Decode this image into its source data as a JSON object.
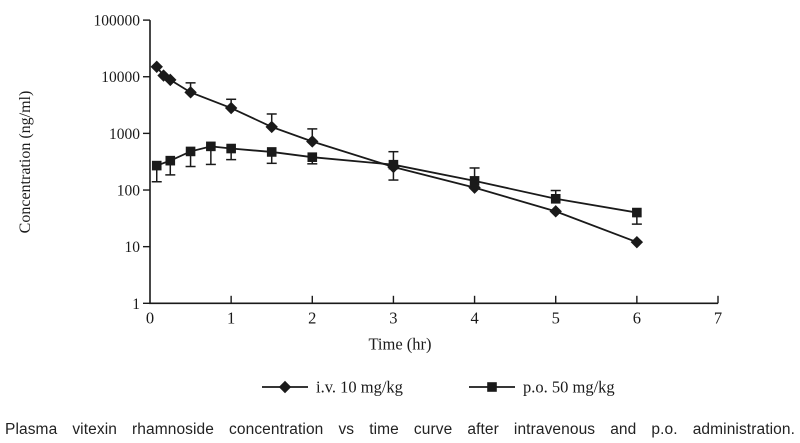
{
  "caption": "Plasma vitexin rhamnoside concentration vs time curve after intravenous and p.o. administration.",
  "colors": {
    "line": "#1a1a1a",
    "background": "#ffffff",
    "text": "#222222"
  },
  "chart_data": {
    "type": "line",
    "title": "",
    "x_axis": {
      "label": "Time (hr)",
      "min": 0,
      "max": 7,
      "ticks": [
        0,
        1,
        2,
        3,
        4,
        5,
        6,
        7
      ],
      "tick_labels": [
        "0",
        "1",
        "2",
        "3",
        "4",
        "5",
        "6",
        "7"
      ]
    },
    "y_axis": {
      "label": "Concentration (ng/ml)",
      "scale": "log",
      "min": 1,
      "max": 100000,
      "ticks": [
        1,
        10,
        100,
        1000,
        10000,
        100000
      ],
      "tick_labels": [
        "1",
        "10",
        "100",
        "1000",
        "10000",
        "100000"
      ]
    },
    "legend_position": "bottom",
    "grid": false,
    "series": [
      {
        "name": "i.v. 10 mg/kg",
        "marker": "diamond",
        "points": [
          {
            "t": 0.083,
            "c": 15000
          },
          {
            "t": 0.167,
            "c": 10500
          },
          {
            "t": 0.25,
            "c": 8800
          },
          {
            "t": 0.5,
            "c": 5300,
            "err_up": 7800
          },
          {
            "t": 1,
            "c": 2800,
            "err_up": 4000
          },
          {
            "t": 1.5,
            "c": 1300,
            "err_up": 2200
          },
          {
            "t": 2,
            "c": 720,
            "err_up": 1200
          },
          {
            "t": 3,
            "c": 255
          },
          {
            "t": 4,
            "c": 110
          },
          {
            "t": 5,
            "c": 42
          },
          {
            "t": 6,
            "c": 12
          }
        ]
      },
      {
        "name": "p.o. 50 mg/kg",
        "marker": "square",
        "points": [
          {
            "t": 0.083,
            "c": 270,
            "err_down": 140
          },
          {
            "t": 0.25,
            "c": 330,
            "err_down": 185
          },
          {
            "t": 0.5,
            "c": 480,
            "err_down": 260
          },
          {
            "t": 0.75,
            "c": 590,
            "err_down": 283
          },
          {
            "t": 1,
            "c": 540,
            "err_down": 344
          },
          {
            "t": 1.5,
            "c": 470,
            "err_down": 296
          },
          {
            "t": 2,
            "c": 380,
            "err_down": 290
          },
          {
            "t": 3,
            "c": 280,
            "err_up": 475,
            "err_down": 150
          },
          {
            "t": 4,
            "c": 145,
            "err_up": 245
          },
          {
            "t": 5,
            "c": 70,
            "err_up": 98
          },
          {
            "t": 6,
            "c": 40,
            "err_down": 25
          }
        ]
      }
    ]
  }
}
